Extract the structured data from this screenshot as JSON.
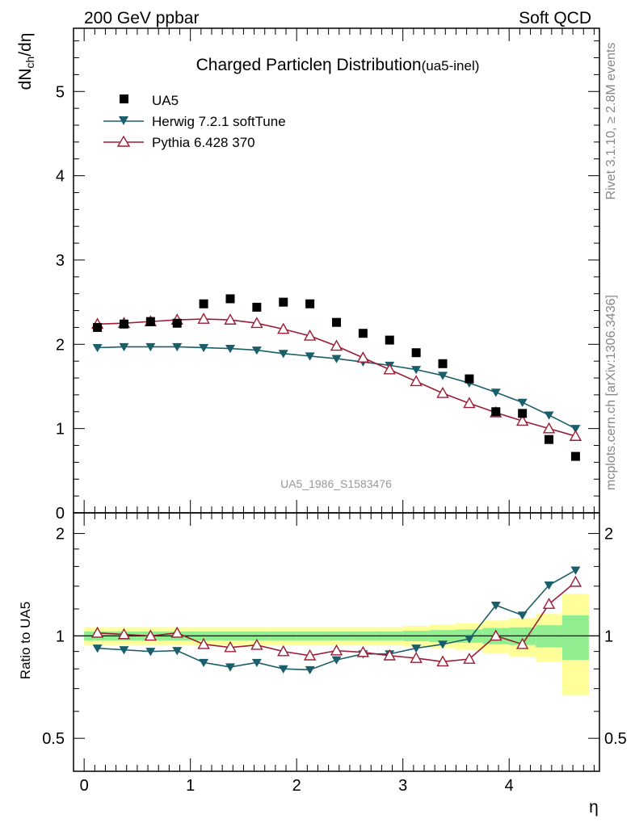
{
  "header": {
    "left": "200 GeV ppbar",
    "right": "Soft QCD"
  },
  "title": {
    "main": "Charged Particle",
    "eta": "η",
    "rest": " Distribution",
    "sub": "(ua5-inel)"
  },
  "side_labels": {
    "rivet": "Rivet 3.1.10, ≥ 2.8M events",
    "mcplots": "mcplots.cern.ch [arXiv:1306.3436]"
  },
  "watermark": "UA5_1986_S1583476",
  "axis": {
    "ylabel_main": "dN",
    "ylabel_main_sub": "ch",
    "ylabel_main_tail": "/dη",
    "ylabel_ratio": "Ratio to UA5",
    "xlabel": "η"
  },
  "legend": {
    "ua5": "UA5",
    "herwig": "Herwig 7.2.1 softTune",
    "pythia": "Pythia 6.428 370"
  },
  "colors": {
    "data": "#000000",
    "herwig": "#1b5e6b",
    "pythia": "#9b1d35",
    "band_inner": "#90ee90",
    "band_outer": "#ffff99"
  },
  "chart_data": [
    {
      "type": "line",
      "panel": "main",
      "xlim": [
        -0.1,
        4.85
      ],
      "ylim": [
        0,
        5.75
      ],
      "x_ticks": [
        "0",
        "1",
        "2",
        "3",
        "4"
      ],
      "y_ticks": [
        "0",
        "1",
        "2",
        "3",
        "4",
        "5"
      ],
      "x": [
        0.125,
        0.375,
        0.625,
        0.875,
        1.125,
        1.375,
        1.625,
        1.875,
        2.125,
        2.375,
        2.625,
        2.875,
        3.125,
        3.375,
        3.625,
        3.875,
        4.125,
        4.375,
        4.625
      ],
      "series": [
        {
          "name": "UA5",
          "values": [
            2.2,
            2.24,
            2.27,
            2.25,
            2.48,
            2.54,
            2.44,
            2.5,
            2.48,
            2.26,
            2.13,
            2.05,
            1.9,
            1.77,
            1.59,
            1.2,
            1.18,
            0.87,
            0.67
          ]
        },
        {
          "name": "Herwig 7.2.1 softTune",
          "values": [
            1.96,
            1.97,
            1.97,
            1.97,
            1.96,
            1.95,
            1.93,
            1.89,
            1.86,
            1.83,
            1.79,
            1.75,
            1.7,
            1.63,
            1.54,
            1.43,
            1.31,
            1.16,
            1.0
          ]
        },
        {
          "name": "Pythia 6.428 370",
          "values": [
            2.24,
            2.25,
            2.27,
            2.29,
            2.3,
            2.29,
            2.25,
            2.18,
            2.1,
            1.98,
            1.84,
            1.7,
            1.56,
            1.42,
            1.3,
            1.19,
            1.09,
            1.0,
            0.91
          ]
        }
      ]
    },
    {
      "type": "line",
      "panel": "ratio",
      "ylabel": "Ratio to UA5",
      "xlabel": "η",
      "ylim": [
        0.4,
        2.3
      ],
      "y_ticks": [
        "0.5",
        "1",
        "2"
      ],
      "x": [
        0.125,
        0.375,
        0.625,
        0.875,
        1.125,
        1.375,
        1.625,
        1.875,
        2.125,
        2.375,
        2.625,
        2.875,
        3.125,
        3.375,
        3.625,
        3.875,
        4.125,
        4.375,
        4.625
      ],
      "series": [
        {
          "name": "Herwig 7.2.1 softTune",
          "values": [
            0.92,
            0.91,
            0.9,
            0.905,
            0.835,
            0.81,
            0.835,
            0.8,
            0.795,
            0.85,
            0.885,
            0.885,
            0.92,
            0.945,
            0.98,
            1.23,
            1.15,
            1.41,
            1.56
          ]
        },
        {
          "name": "Pythia 6.428 370",
          "values": [
            1.02,
            1.01,
            1.0,
            1.02,
            0.945,
            0.925,
            0.94,
            0.9,
            0.875,
            0.905,
            0.895,
            0.875,
            0.86,
            0.84,
            0.855,
            1.0,
            0.945,
            1.24,
            1.44
          ]
        }
      ],
      "band_inner": [
        0.03,
        0.03,
        0.03,
        0.03,
        0.03,
        0.03,
        0.03,
        0.03,
        0.03,
        0.03,
        0.03,
        0.03,
        0.035,
        0.04,
        0.045,
        0.055,
        0.06,
        0.075,
        0.15
      ],
      "band_outer": [
        0.06,
        0.06,
        0.06,
        0.06,
        0.06,
        0.06,
        0.06,
        0.06,
        0.06,
        0.06,
        0.06,
        0.06,
        0.07,
        0.08,
        0.09,
        0.11,
        0.13,
        0.16,
        0.33
      ]
    }
  ]
}
